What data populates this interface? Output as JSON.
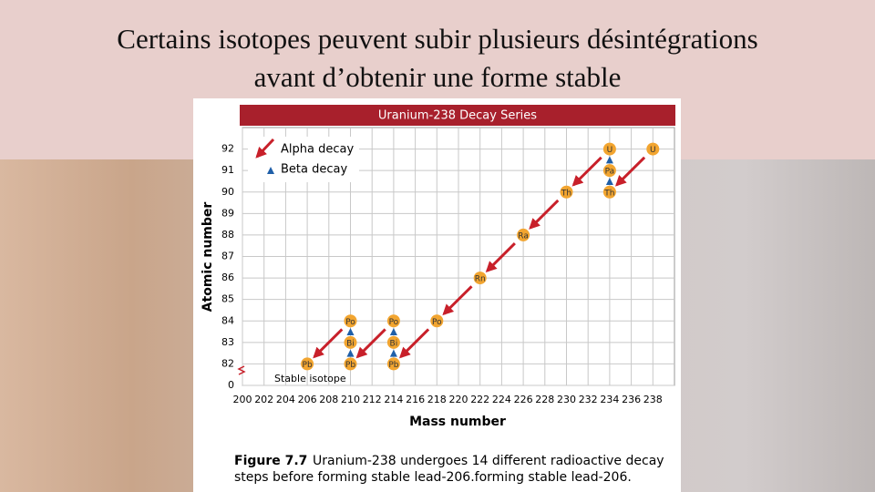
{
  "slide_title": [
    "Certains isotopes peuvent subir plusieurs désintégrations",
    "avant d’obtenir une forme stable"
  ],
  "chart_data": {
    "type": "scatter",
    "title": "Uranium-238 Decay Series",
    "x_label": "Mass number",
    "y_label": "Atomic number",
    "x": [
      238,
      234,
      234,
      234,
      230,
      226,
      222,
      218,
      214,
      214,
      214,
      210,
      210,
      210,
      206
    ],
    "values": [
      92,
      90,
      91,
      92,
      90,
      88,
      86,
      84,
      82,
      83,
      84,
      82,
      83,
      84,
      82
    ],
    "point_labels": [
      "U",
      "Th",
      "Pa",
      "U",
      "Th",
      "Ra",
      "Rn",
      "Po",
      "Pb",
      "Bi",
      "Po",
      "Pb",
      "Bi",
      "Po",
      "Pb"
    ],
    "color": "#f2a530",
    "legend": [
      "Alpha decay",
      "Beta decay"
    ],
    "alpha_color": "#c8202a",
    "beta_color": "#1f5fa8",
    "xlim": [
      200,
      240
    ],
    "ylim": [
      81,
      93
    ],
    "y_axis_break": true,
    "xticks": [
      200,
      202,
      204,
      206,
      208,
      210,
      212,
      214,
      216,
      218,
      220,
      222,
      224,
      226,
      228,
      230,
      232,
      234,
      236,
      238
    ],
    "yticks": [
      0,
      82,
      83,
      84,
      85,
      86,
      87,
      88,
      89,
      90,
      91,
      92
    ],
    "grid": true,
    "annotation": "Stable isotope",
    "figure_label": "Figure 7.7",
    "caption": [
      "Uranium-238 undergoes 14 different radioactive decay",
      "steps before forming stable lead-206.forming stable lead-206."
    ]
  }
}
